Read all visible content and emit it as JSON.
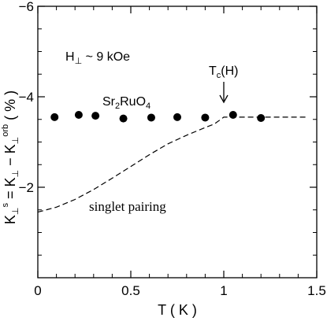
{
  "chart_data": {
    "type": "scatter",
    "xlabel": "T ( K )",
    "ylabel_parts": {
      "k1": "K",
      "sup_s": "s",
      "eq": " = K",
      "minus": " − K",
      "sup_orb": "orb",
      "unit": " ( % )",
      "perp": "⊥"
    },
    "xlim": [
      0,
      1.5
    ],
    "ylim": [
      0,
      -6
    ],
    "y_axis_inverted": true,
    "grid": false,
    "x_ticks": [
      {
        "value": 0,
        "label": "0"
      },
      {
        "value": 0.5,
        "label": "0.5"
      },
      {
        "value": 1,
        "label": "1"
      },
      {
        "value": 1.5,
        "label": "1.5"
      }
    ],
    "y_ticks": [
      {
        "value": -2,
        "label": "−2"
      },
      {
        "value": -4,
        "label": "−4"
      },
      {
        "value": -6,
        "label": "−6"
      }
    ],
    "series": [
      {
        "marker": "filled-circle",
        "x": [
          0.09,
          0.22,
          0.31,
          0.46,
          0.61,
          0.75,
          0.9,
          1.05,
          1.2
        ],
        "y": [
          -3.55,
          -3.6,
          -3.58,
          -3.52,
          -3.54,
          -3.55,
          -3.54,
          -3.6,
          -3.53
        ]
      },
      {
        "name": "singlet pairing",
        "style": "dashed",
        "x": [
          0,
          0.1,
          0.2,
          0.3,
          0.4,
          0.5,
          0.6,
          0.7,
          0.8,
          0.9,
          0.95,
          1.0,
          1.1,
          1.2,
          1.3,
          1.45
        ],
        "y": [
          -1.45,
          -1.56,
          -1.73,
          -1.95,
          -2.2,
          -2.46,
          -2.72,
          -2.96,
          -3.15,
          -3.32,
          -3.4,
          -3.55,
          -3.55,
          -3.55,
          -3.55,
          -3.55
        ]
      }
    ],
    "annotations": {
      "field": {
        "h": "H",
        "perp": "⊥",
        "rest": " ~ 9 kOe"
      },
      "material": {
        "a": "Sr",
        "s1": "2",
        "b": "RuO",
        "s2": "4"
      },
      "tc": {
        "t": "T",
        "c": "c",
        "rest": "(H)",
        "arrow_x": 1.0
      },
      "singlet": "singlet pairing"
    }
  },
  "colors": {
    "ink": "#000000",
    "background": "#ffffff"
  }
}
